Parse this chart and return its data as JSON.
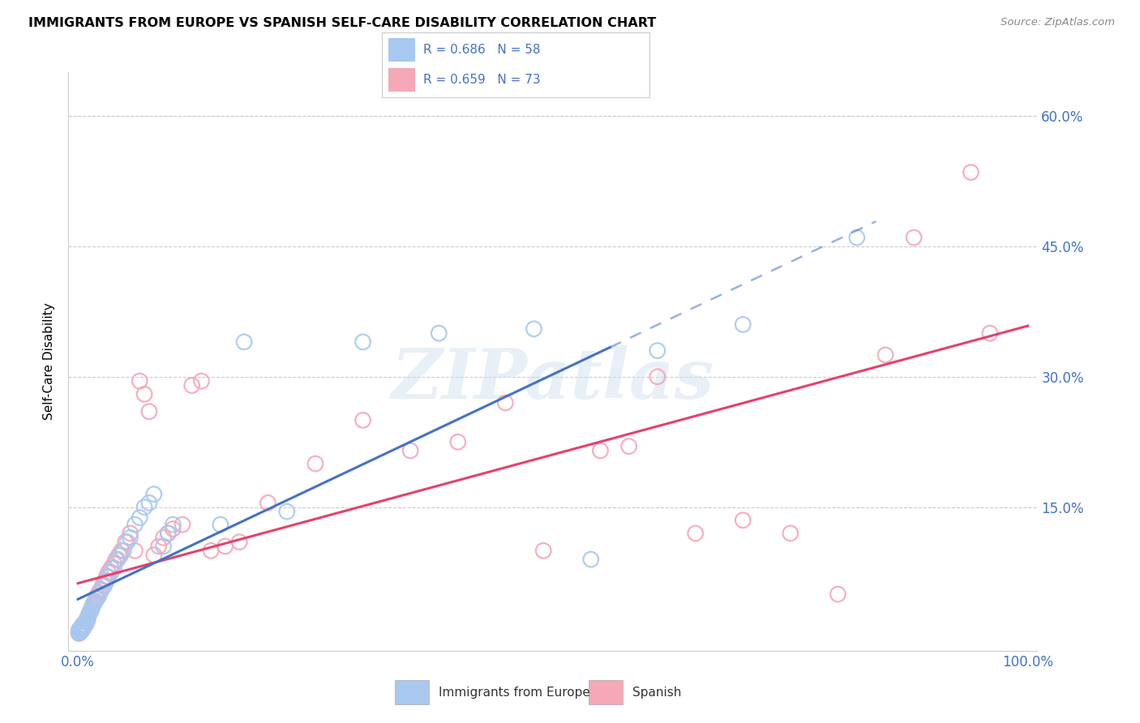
{
  "title": "IMMIGRANTS FROM EUROPE VS SPANISH SELF-CARE DISABILITY CORRELATION CHART",
  "source": "Source: ZipAtlas.com",
  "ylabel": "Self-Care Disability",
  "yticklabels": [
    "15.0%",
    "30.0%",
    "45.0%",
    "60.0%"
  ],
  "yticks": [
    0.15,
    0.3,
    0.45,
    0.6
  ],
  "legend_label1": "Immigrants from Europe",
  "legend_label2": "Spanish",
  "R1": "0.686",
  "N1": "58",
  "R2": "0.659",
  "N2": "73",
  "color_blue_scatter": "#A8C8F0",
  "color_blue_line": "#4472C4",
  "color_pink_scatter": "#F4A8B8",
  "color_pink_line": "#E8406A",
  "color_stat_text": "#4472C4",
  "color_grid": "#CCCCCC",
  "watermark": "ZIPatlas",
  "blue_x": [
    0.001,
    0.001,
    0.002,
    0.002,
    0.003,
    0.003,
    0.004,
    0.004,
    0.005,
    0.005,
    0.005,
    0.006,
    0.007,
    0.007,
    0.008,
    0.008,
    0.009,
    0.01,
    0.01,
    0.011,
    0.012,
    0.013,
    0.014,
    0.015,
    0.016,
    0.017,
    0.018,
    0.02,
    0.022,
    0.025,
    0.028,
    0.03,
    0.032,
    0.035,
    0.038,
    0.042,
    0.045,
    0.048,
    0.052,
    0.055,
    0.06,
    0.065,
    0.07,
    0.075,
    0.08,
    0.09,
    0.095,
    0.1,
    0.15,
    0.175,
    0.22,
    0.3,
    0.38,
    0.48,
    0.54,
    0.61,
    0.7,
    0.82
  ],
  "blue_y": [
    0.005,
    0.008,
    0.006,
    0.01,
    0.008,
    0.01,
    0.008,
    0.012,
    0.01,
    0.012,
    0.015,
    0.012,
    0.014,
    0.015,
    0.015,
    0.018,
    0.018,
    0.02,
    0.022,
    0.025,
    0.028,
    0.03,
    0.032,
    0.035,
    0.038,
    0.04,
    0.042,
    0.045,
    0.048,
    0.055,
    0.06,
    0.065,
    0.07,
    0.075,
    0.08,
    0.09,
    0.095,
    0.1,
    0.11,
    0.115,
    0.13,
    0.138,
    0.15,
    0.155,
    0.165,
    0.105,
    0.12,
    0.13,
    0.13,
    0.34,
    0.145,
    0.34,
    0.35,
    0.355,
    0.09,
    0.33,
    0.36,
    0.46
  ],
  "pink_x": [
    0.001,
    0.001,
    0.002,
    0.002,
    0.003,
    0.003,
    0.004,
    0.004,
    0.005,
    0.005,
    0.006,
    0.006,
    0.007,
    0.008,
    0.009,
    0.01,
    0.01,
    0.011,
    0.012,
    0.013,
    0.014,
    0.015,
    0.016,
    0.017,
    0.018,
    0.019,
    0.02,
    0.022,
    0.024,
    0.026,
    0.028,
    0.03,
    0.032,
    0.035,
    0.038,
    0.04,
    0.043,
    0.046,
    0.05,
    0.055,
    0.06,
    0.065,
    0.07,
    0.075,
    0.08,
    0.085,
    0.09,
    0.095,
    0.1,
    0.11,
    0.12,
    0.13,
    0.14,
    0.155,
    0.17,
    0.2,
    0.25,
    0.3,
    0.35,
    0.4,
    0.45,
    0.49,
    0.55,
    0.58,
    0.61,
    0.65,
    0.7,
    0.75,
    0.8,
    0.85,
    0.88,
    0.94,
    0.96
  ],
  "pink_y": [
    0.005,
    0.008,
    0.006,
    0.01,
    0.008,
    0.01,
    0.009,
    0.012,
    0.01,
    0.013,
    0.012,
    0.015,
    0.014,
    0.015,
    0.018,
    0.02,
    0.022,
    0.025,
    0.028,
    0.03,
    0.032,
    0.035,
    0.038,
    0.04,
    0.042,
    0.045,
    0.048,
    0.052,
    0.055,
    0.06,
    0.065,
    0.07,
    0.075,
    0.08,
    0.085,
    0.09,
    0.095,
    0.1,
    0.11,
    0.12,
    0.1,
    0.295,
    0.28,
    0.26,
    0.095,
    0.105,
    0.115,
    0.12,
    0.125,
    0.13,
    0.29,
    0.295,
    0.1,
    0.105,
    0.11,
    0.155,
    0.2,
    0.25,
    0.215,
    0.225,
    0.27,
    0.1,
    0.215,
    0.22,
    0.3,
    0.12,
    0.135,
    0.12,
    0.05,
    0.325,
    0.46,
    0.535,
    0.35
  ]
}
